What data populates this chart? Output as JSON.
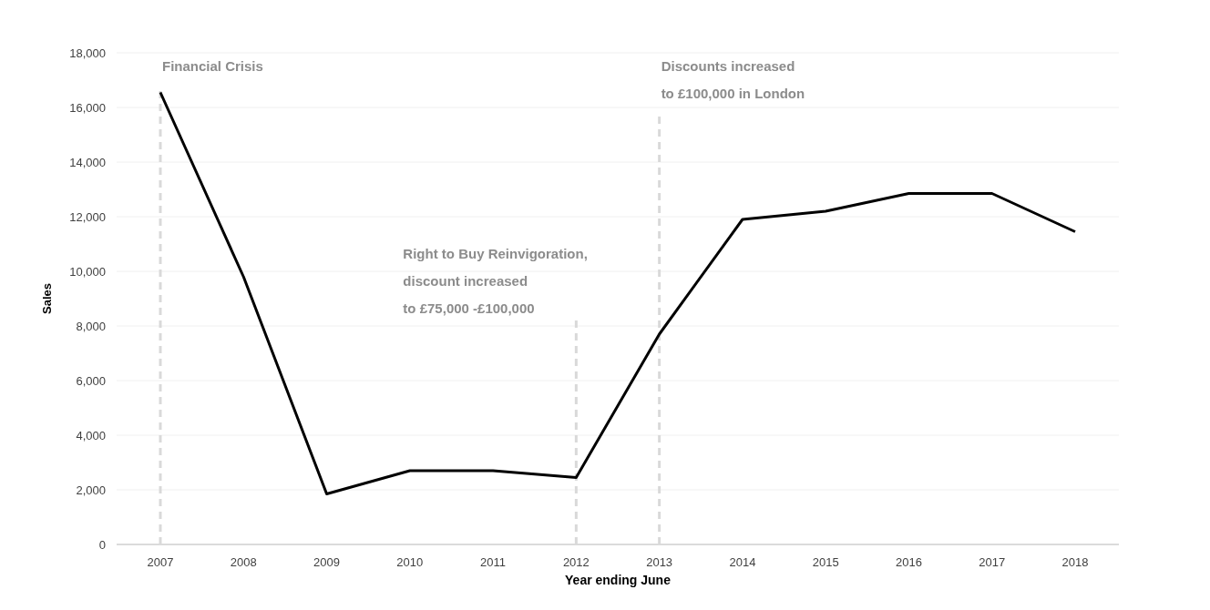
{
  "chart_data": {
    "type": "line",
    "xlabel": "Year ending June",
    "ylabel": "Sales",
    "categories": [
      "2007",
      "2008",
      "2009",
      "2010",
      "2011",
      "2012",
      "2013",
      "2014",
      "2015",
      "2016",
      "2017",
      "2018"
    ],
    "series": [
      {
        "color": "#000000",
        "values": [
          16550,
          9800,
          1850,
          2700,
          2700,
          2450,
          7700,
          11900,
          12200,
          12850,
          12850,
          11450
        ]
      }
    ],
    "ylim": [
      0,
      18000
    ],
    "yticks": [
      {
        "value": 0,
        "label": "0"
      },
      {
        "value": 2000,
        "label": "2,000"
      },
      {
        "value": 4000,
        "label": "4,000"
      },
      {
        "value": 6000,
        "label": "6,000"
      },
      {
        "value": 8000,
        "label": "8,000"
      },
      {
        "value": 10000,
        "label": "10,000"
      },
      {
        "value": 12000,
        "label": "12,000"
      },
      {
        "value": 14000,
        "label": "14,000"
      },
      {
        "value": 16000,
        "label": "16,000"
      },
      {
        "value": 18000,
        "label": "18,000"
      }
    ],
    "grid": "y",
    "marker": "none",
    "line_style": "solid",
    "ref_lines": [
      {
        "axis": "x",
        "value": "2007",
        "label": "Financial Crisis",
        "color": "#d9d9d9",
        "line_style": "dashed"
      },
      {
        "axis": "x",
        "value": "2012",
        "label": "Right to Buy Reinvigoration,\ndiscount increased\nto £75,000 -£100,000",
        "color": "#d9d9d9",
        "line_style": "dashed"
      },
      {
        "axis": "x",
        "value": "2013",
        "label": "Discounts increased\nto £100,000 in London",
        "color": "#d9d9d9",
        "line_style": "dashed"
      }
    ]
  }
}
